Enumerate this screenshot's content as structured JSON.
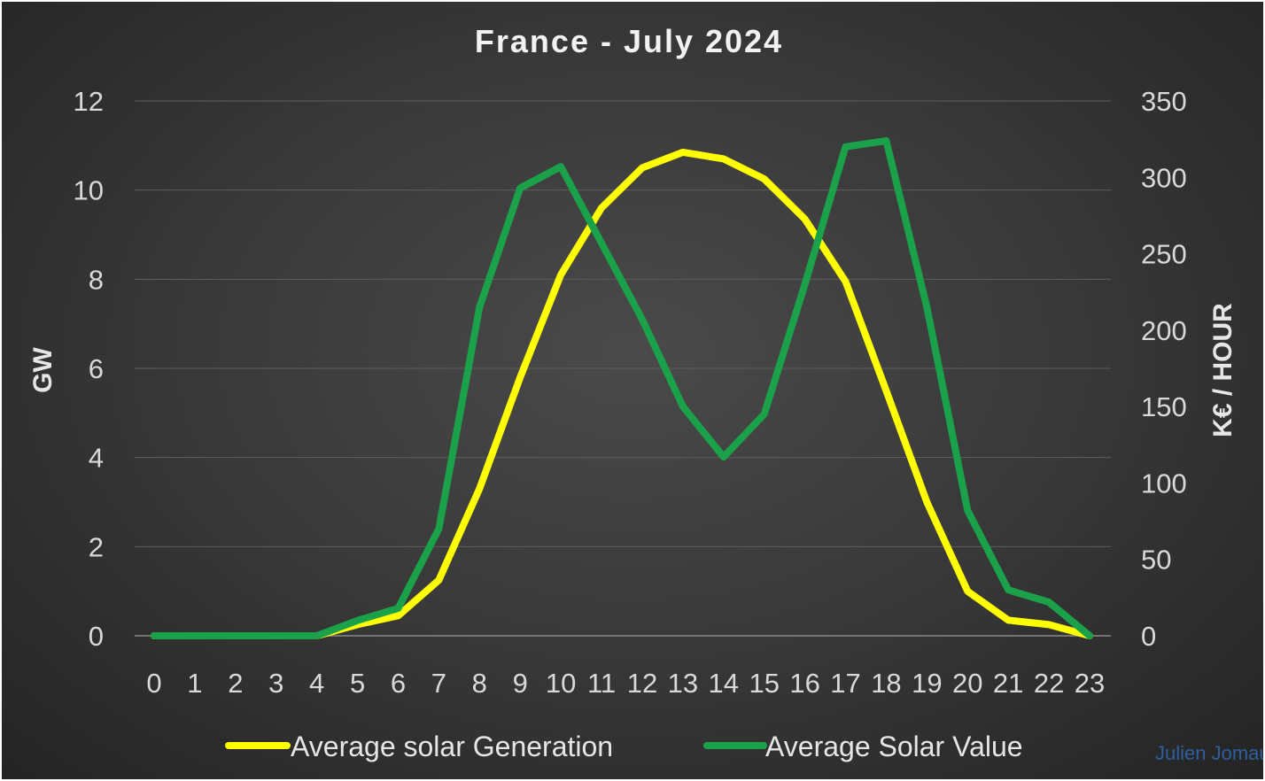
{
  "chart_data": {
    "type": "line",
    "title": "France - July 2024",
    "x": [
      0,
      1,
      2,
      3,
      4,
      5,
      6,
      7,
      8,
      9,
      10,
      11,
      12,
      13,
      14,
      15,
      16,
      17,
      18,
      19,
      20,
      21,
      22,
      23
    ],
    "y_left": {
      "label": "GW",
      "ylim": [
        0,
        12
      ],
      "ticks": [
        0,
        2,
        4,
        6,
        8,
        10,
        12
      ]
    },
    "y_right": {
      "label": "K€ / HOUR",
      "ylim": [
        0,
        350
      ],
      "ticks": [
        0,
        50,
        100,
        150,
        200,
        250,
        300,
        350
      ]
    },
    "series": [
      {
        "name": "Average solar Generation",
        "axis": "left",
        "color": "#ffff00",
        "values": [
          0,
          0,
          0,
          0,
          0,
          0.25,
          0.45,
          1.25,
          3.3,
          5.8,
          8.1,
          9.6,
          10.5,
          10.85,
          10.7,
          10.25,
          9.35,
          7.95,
          5.5,
          3.0,
          1.0,
          0.35,
          0.25,
          0
        ]
      },
      {
        "name": "Average Solar Value",
        "axis": "right",
        "color": "#1aa14a",
        "values": [
          0,
          0,
          0,
          0,
          0,
          10,
          18,
          70,
          215,
          293,
          307,
          257,
          207,
          150,
          117,
          145,
          230,
          320,
          324,
          215,
          82,
          30,
          22,
          0
        ]
      }
    ],
    "grid": true,
    "legend": "bottom"
  },
  "watermark": "Julien Jomaux"
}
